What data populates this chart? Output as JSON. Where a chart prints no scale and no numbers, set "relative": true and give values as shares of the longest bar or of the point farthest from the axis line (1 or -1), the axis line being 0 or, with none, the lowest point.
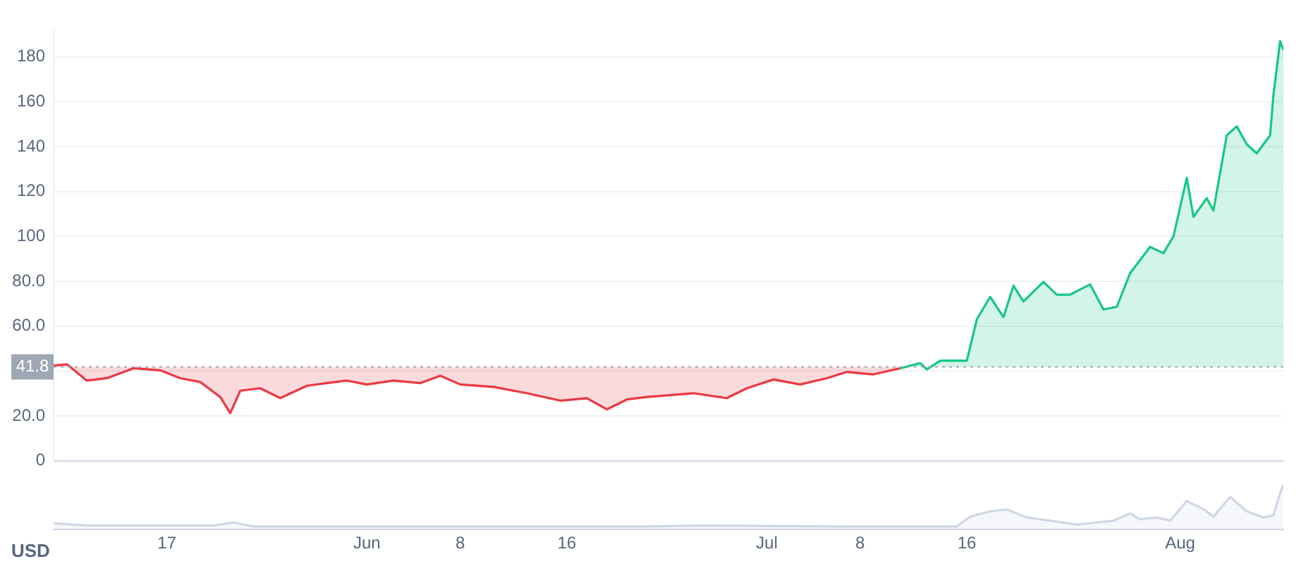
{
  "chart_data": [
    {
      "type": "area",
      "ylabel": "USD",
      "x": [
        "--05-08T12:00",
        "--05-09T12:00",
        "--05-11T00:00",
        "--05-12T12:00",
        "--05-14T12:00",
        "--05-16T12:00",
        "--05-18T00:00",
        "--05-19T12:00",
        "--05-21T00:00",
        "--05-21T18:00",
        "--05-22T12:00",
        "--05-24T00:00",
        "--05-25T12:00",
        "--05-27T12:00",
        "--05-29T00:00",
        "--05-30T12:00",
        "--06-01T00:00",
        "--06-03T00:00",
        "--06-05T00:00",
        "--06-06T12:00",
        "--06-08T00:00",
        "--06-10T12:00",
        "--06-13T00:00",
        "--06-15T12:00",
        "--06-17T12:00",
        "--06-19T00:00",
        "--06-20T12:00",
        "--06-22T00:00",
        "--06-25T12:00",
        "--06-28T00:00",
        "--06-29T12:00",
        "--07-01T12:00",
        "--07-03T12:00",
        "--07-05T12:00",
        "--07-07T00:00",
        "--07-09T00:00",
        "--07-11T00:00",
        "--07-12T12:00",
        "--07-13T00:00",
        "--07-14T00:00",
        "--07-16T00:00",
        "--07-16T18:00",
        "--07-17T18:00",
        "--07-18T18:00",
        "--07-19T12:00",
        "--07-20T06:00",
        "--07-21T18:00",
        "--07-22T18:00",
        "--07-23T18:00",
        "--07-25T06:00",
        "--07-26T06:00",
        "--07-27T06:00",
        "--07-28T06:00",
        "--07-29T18:00",
        "--07-30T18:00",
        "--07-31T12:00",
        "--08-01T12:00",
        "--08-02T00:00",
        "--08-03T00:00",
        "--08-03T12:00",
        "--08-04T12:00",
        "--08-05T06:00",
        "--08-06T00:00",
        "--08-06T18:00",
        "--08-07T18:00",
        "--08-08T00:00",
        "--08-08T12:00",
        "--08-08T18:00"
      ],
      "series": [
        {
          "color": "#ea3943",
          "values": [
            42.4,
            43,
            35.7,
            36.8,
            41.2,
            40.3,
            36.8,
            35.1,
            28.4,
            21.2,
            31.2,
            32.3,
            27.9,
            33.4,
            34.6,
            35.7,
            34,
            35.7,
            34.6,
            37.9,
            34,
            32.9,
            30.1,
            26.8,
            27.9,
            22.9,
            27.3,
            28.4,
            30.1,
            27.9,
            32.3,
            36.2,
            34,
            36.8,
            39.6,
            38.5,
            41.2,
            null,
            null,
            null,
            null,
            null,
            null,
            null,
            null,
            null,
            null,
            null,
            null,
            null,
            null,
            null,
            null,
            null,
            null,
            null,
            null,
            null,
            null,
            null,
            null,
            null,
            null,
            null,
            null,
            null,
            null,
            null
          ]
        },
        {
          "color": "#16c784",
          "values": [
            null,
            null,
            null,
            null,
            null,
            null,
            null,
            null,
            null,
            null,
            null,
            null,
            null,
            null,
            null,
            null,
            null,
            null,
            null,
            null,
            null,
            null,
            null,
            null,
            null,
            null,
            null,
            null,
            null,
            null,
            null,
            null,
            null,
            null,
            null,
            null,
            41.2,
            43.5,
            40.7,
            44.6,
            44.6,
            63,
            73,
            64,
            78,
            71,
            79.7,
            74,
            74,
            78.6,
            67.4,
            68.6,
            83.6,
            95.3,
            92.5,
            100,
            126,
            108.7,
            117,
            111.5,
            145,
            149,
            141,
            137,
            145,
            163,
            187,
            183
          ]
        }
      ],
      "xlim": [
        "--05-08T12:00",
        "--08-08T18:00"
      ],
      "ylim": [
        0,
        192
      ],
      "yticks": [
        {
          "value": 0,
          "label": "0"
        },
        {
          "value": 20,
          "label": "20.0"
        },
        {
          "value": 40,
          "label": null
        },
        {
          "value": 60,
          "label": "60.0"
        },
        {
          "value": 80,
          "label": "80.0"
        },
        100,
        120,
        140,
        160,
        180
      ],
      "ref_lines": [
        {
          "axis": "y",
          "value": 41.8,
          "label": "41.8",
          "color": "#a0a7b4",
          "line_style": "dotted"
        }
      ],
      "grid": "y",
      "legend": false,
      "marker": "none",
      "tick_labels": "y"
    },
    {
      "type": "area",
      "relative": true,
      "x": [
        "--05-08T12:00",
        "--05-11T00:00",
        "--05-20T12:00",
        "--05-22T00:00",
        "--05-23T12:00",
        "--06-05T00:00",
        "--06-22T00:00",
        "--06-26T00:00",
        "--07-06T12:00",
        "--07-15T06:00",
        "--07-16T06:00",
        "--07-17T18:00",
        "--07-19T00:00",
        "--07-20T12:00",
        "--07-22T06:00",
        "--07-24T06:00",
        "--07-27T00:00",
        "--07-28T06:00",
        "--07-29T00:00",
        "--07-30T06:00",
        "--07-31T06:00",
        "--08-01T12:00",
        "--08-02T18:00",
        "--08-03T12:00",
        "--08-04T18:00",
        "--08-06T00:00",
        "--08-07T06:00",
        "--08-08T00:00",
        "--08-08T12:00",
        "--08-08T18:00"
      ],
      "series": [
        {
          "color": "#cfd6e4",
          "values": [
            0.14,
            0.09,
            0.09,
            0.16,
            0.07,
            0.07,
            0.07,
            0.09,
            0.07,
            0.07,
            0.29,
            0.41,
            0.45,
            0.27,
            0.2,
            0.11,
            0.2,
            0.36,
            0.23,
            0.27,
            0.2,
            0.64,
            0.46,
            0.29,
            0.73,
            0.41,
            0.27,
            0.32,
            0.82,
            1
          ]
        }
      ],
      "xlim": [
        "--05-08T12:00",
        "--08-08T18:00"
      ],
      "xticks": [
        {
          "value": "--05-17",
          "label": "17"
        },
        {
          "value": "--06-01",
          "label": "Jun"
        },
        {
          "value": "--06-08",
          "label": "8"
        },
        {
          "value": "--06-16",
          "label": "16"
        },
        {
          "value": "--07-01",
          "label": "Jul"
        },
        {
          "value": "--07-08",
          "label": "8"
        },
        {
          "value": "--07-16",
          "label": "16"
        },
        {
          "value": "--08-01",
          "label": "Aug"
        }
      ],
      "grid": false,
      "legend": false,
      "marker": "none",
      "tick_labels": "x"
    }
  ]
}
